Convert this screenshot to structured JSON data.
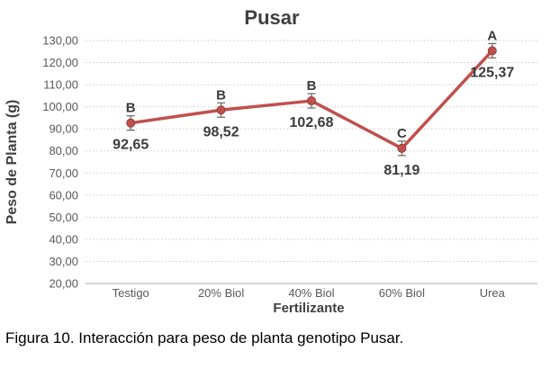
{
  "figure": {
    "caption": "Figura 10. Interacción para peso de planta genotipo Pusar."
  },
  "chart_data": {
    "type": "line",
    "title": "Pusar",
    "xlabel": "Fertilizante",
    "ylabel": "Peso de Planta (g)",
    "categories": [
      "Testigo",
      "20% Biol",
      "40% Biol",
      "60% Biol",
      "Urea"
    ],
    "values": [
      92.65,
      98.52,
      102.68,
      81.19,
      125.37
    ],
    "value_labels": [
      "92,65",
      "98,52",
      "102,68",
      "81,19",
      "125,37"
    ],
    "significance_letters": [
      "B",
      "B",
      "B",
      "C",
      "A"
    ],
    "y_ticks": [
      "130,00",
      "120,00",
      "110,00",
      "100,00",
      "90,00",
      "80,00",
      "70,00",
      "60,00",
      "50,00",
      "40,00",
      "30,00",
      "20,00"
    ],
    "y_tick_values": [
      130,
      120,
      110,
      100,
      90,
      80,
      70,
      60,
      50,
      40,
      30,
      20
    ],
    "ylim": [
      20,
      130
    ],
    "grid": "horizontal-dotted",
    "legend": "none",
    "error_bars": true,
    "colors": {
      "line": "#c0504d",
      "marker": "#c0504d",
      "marker_edge": "#9c3b38",
      "error_bar": "#666666",
      "gridline": "#c9c9c9",
      "axis_line": "#bdbdbd",
      "title_text": "#404040",
      "tick_text": "#595959",
      "value_text": "#3b3b3b"
    }
  }
}
